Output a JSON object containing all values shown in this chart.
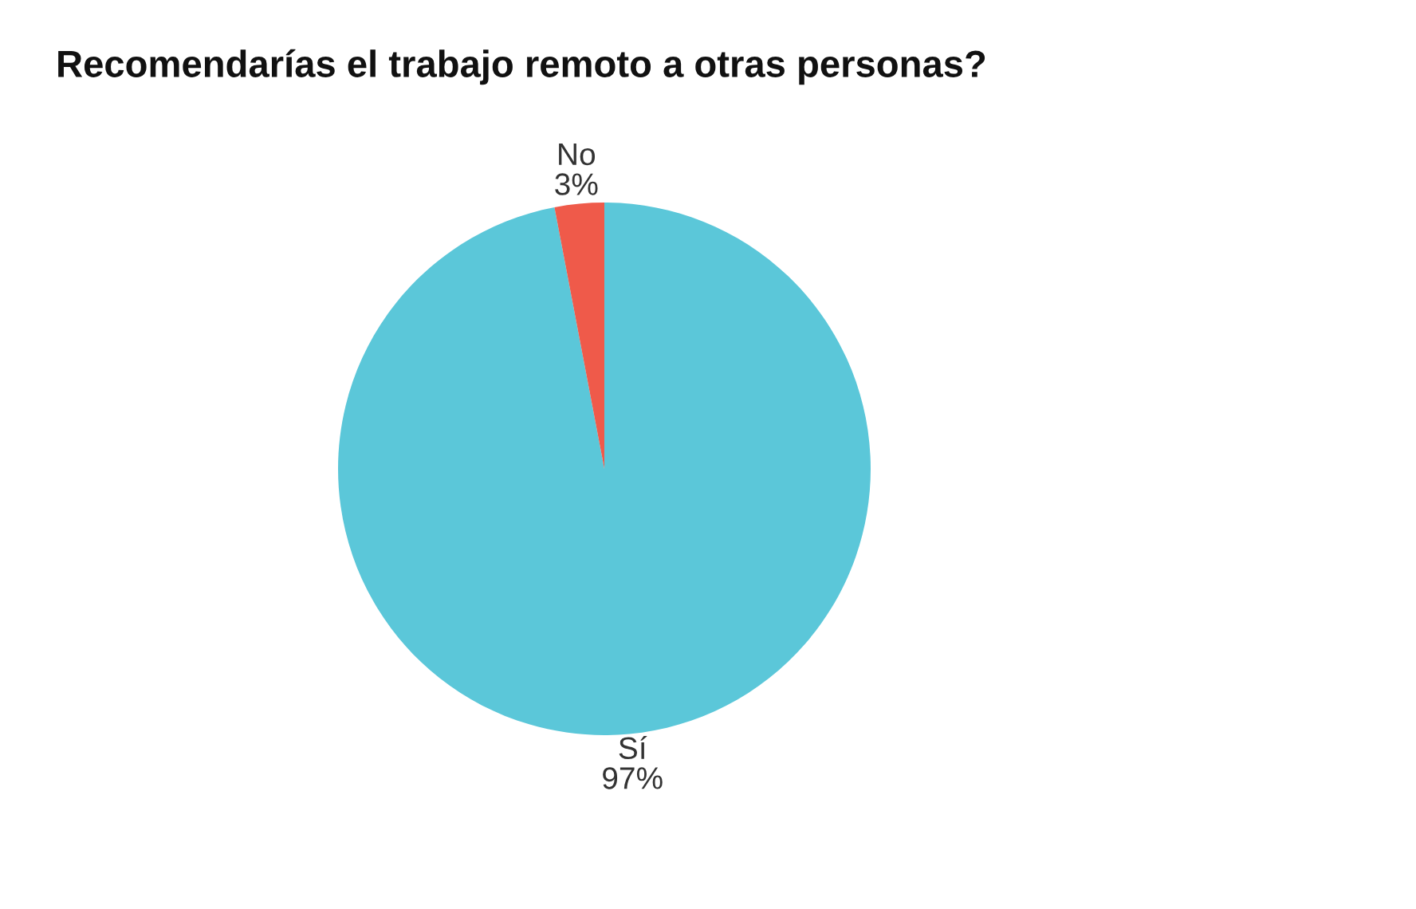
{
  "chart_data": {
    "type": "pie",
    "title": "Recomendarías el trabajo remoto a otras personas?",
    "categories": [
      "Sí",
      "No"
    ],
    "values": [
      97,
      3
    ],
    "colors": [
      "#5bc7d9",
      "#ef5a4a"
    ],
    "value_labels": [
      "97%",
      "3%"
    ]
  }
}
